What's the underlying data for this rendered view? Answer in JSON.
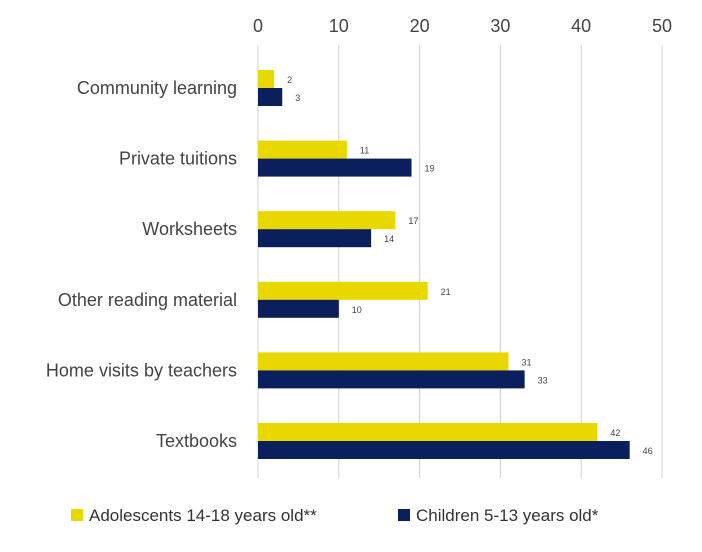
{
  "chart_data": {
    "type": "bar",
    "orientation": "horizontal",
    "categories": [
      "Community learning",
      "Private tuitions",
      "Worksheets",
      "Other reading material",
      "Home visits by teachers",
      "Textbooks"
    ],
    "series": [
      {
        "name": "Adolescents 14-18 years old**",
        "color": "#e8d800",
        "values": [
          2,
          11,
          17,
          21,
          31,
          42
        ]
      },
      {
        "name": "Children 5-13 years old*",
        "color": "#0a1f5c",
        "values": [
          3,
          19,
          14,
          10,
          33,
          46
        ]
      }
    ],
    "xlim": [
      0,
      50
    ],
    "xticks": [
      "0",
      "10",
      "20",
      "30",
      "40",
      "50"
    ],
    "x_axis_position": "top",
    "grid": true,
    "legend": "bottom"
  }
}
